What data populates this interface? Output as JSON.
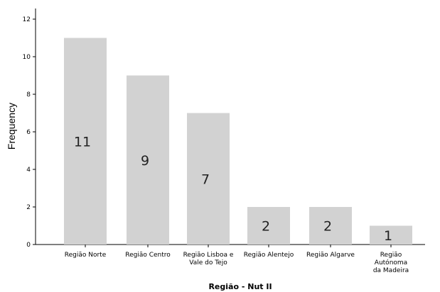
{
  "chart_data": {
    "type": "bar",
    "categories": [
      [
        "Região Norte"
      ],
      [
        "Região Centro"
      ],
      [
        "Região Lisboa e",
        "Vale do Tejo"
      ],
      [
        "Região Alentejo"
      ],
      [
        "Região Algarve"
      ],
      [
        "Região",
        "Autónoma",
        "da Madeira"
      ]
    ],
    "values": [
      11,
      9,
      7,
      2,
      2,
      1
    ],
    "data_labels": [
      "11",
      "9",
      "7",
      "2",
      "2",
      "1"
    ],
    "xlabel": "Região - Nut II",
    "ylabel": "Frequency",
    "ylim": [
      0,
      12
    ],
    "yticks": [
      "0",
      "2",
      "4",
      "6",
      "8",
      "10",
      "12"
    ],
    "bar_color": "#d2d2d2",
    "grid": false,
    "legend": "none"
  }
}
